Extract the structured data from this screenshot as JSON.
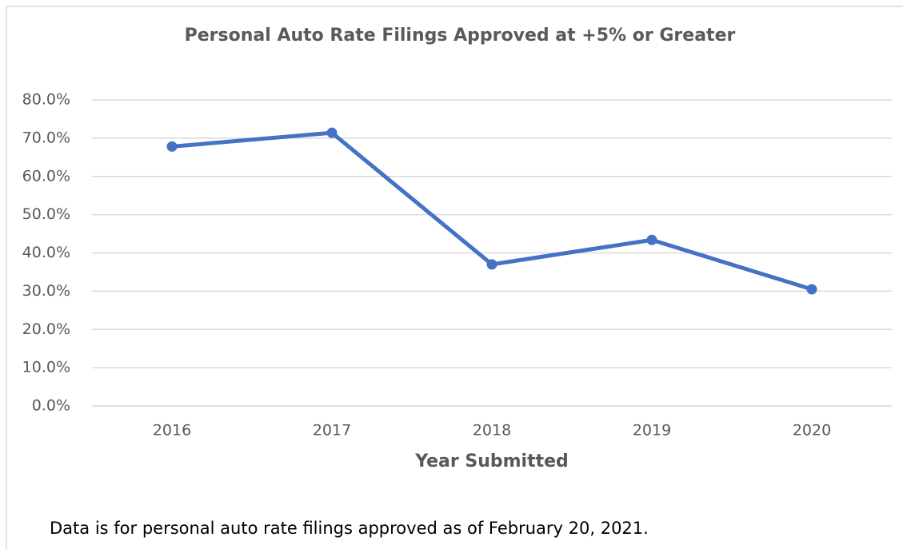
{
  "chart_data": {
    "type": "line",
    "title": "Personal Auto Rate Filings Approved at +5% or Greater",
    "x_label": "Year Submitted",
    "note": "Data is for personal auto rate filings approved as of February 20, 2021.",
    "categories": [
      "2016",
      "2017",
      "2018",
      "2019",
      "2020"
    ],
    "series": [
      {
        "name": "Approved at +5% or Greater",
        "color": "#4472c4",
        "values": [
          67.8,
          71.4,
          37.0,
          43.4,
          30.5
        ]
      }
    ],
    "ylim": [
      0,
      80
    ],
    "yticks": [
      {
        "value": 0,
        "label": "0.0%"
      },
      {
        "value": 10,
        "label": "10.0%"
      },
      {
        "value": 20,
        "label": "20.0%"
      },
      {
        "value": 30,
        "label": "30.0%"
      },
      {
        "value": 40,
        "label": "40.0%"
      },
      {
        "value": 50,
        "label": "50.0%"
      },
      {
        "value": 60,
        "label": "60.0%"
      },
      {
        "value": 70,
        "label": "70.0%"
      },
      {
        "value": 80,
        "label": "80.0%"
      }
    ],
    "grid": true
  }
}
